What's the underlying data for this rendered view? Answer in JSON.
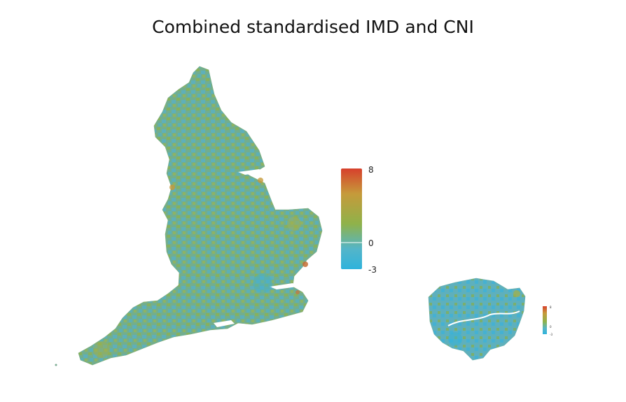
{
  "title": "Combined standardised IMD and CNI",
  "legend": {
    "max_label": "8",
    "mid_label": "0",
    "min_label": "-3",
    "colors": {
      "high": "#d7402c",
      "upper": "#c69a3a",
      "mid": "#8fb24a",
      "low": "#54b5c9",
      "bottom": "#2fb3dc"
    }
  },
  "maps": [
    {
      "id": "england",
      "type": "choropleth",
      "fill_mix": [
        "#6fb08a",
        "#8fb24a",
        "#57aeca"
      ]
    },
    {
      "id": "london-inset",
      "type": "choropleth",
      "fill_mix": [
        "#5ab0bf",
        "#8fb24a",
        "#3cb0d6"
      ]
    }
  ]
}
